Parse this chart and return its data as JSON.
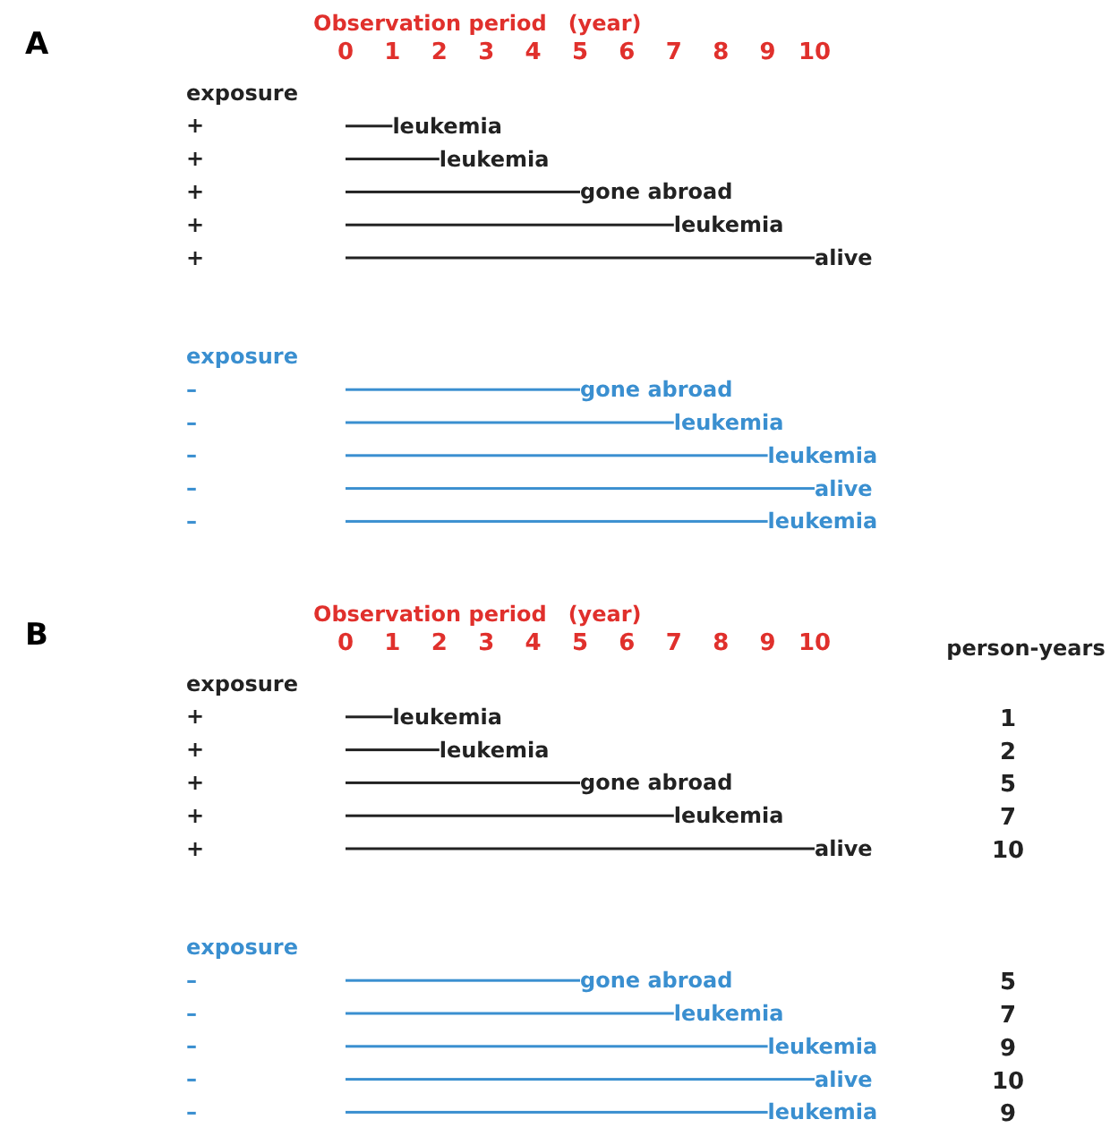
{
  "chart_data": [
    {
      "type": "bar",
      "orientation": "horizontal",
      "title": "A",
      "xlabel": "Observation period　(year)",
      "xlim": [
        0,
        10
      ],
      "xticks": [
        0,
        1,
        2,
        3,
        4,
        5,
        6,
        7,
        8,
        9,
        10
      ],
      "categories": [
        "exposure",
        "+",
        "+",
        "+",
        "+",
        "+",
        null,
        null,
        "exposure",
        "–",
        "–",
        "–",
        "–",
        "–"
      ],
      "grid": false,
      "series": [
        {
          "color": "#222222",
          "values": [
            null,
            1,
            2,
            5,
            7,
            10,
            null,
            null,
            null,
            null,
            null,
            null,
            null,
            null
          ],
          "value_labels": [
            null,
            "leukemia",
            "leukemia",
            "gone abroad",
            "leukemia",
            "alive",
            null,
            null,
            null,
            null,
            null,
            null,
            null,
            null
          ]
        },
        {
          "color": "#3a8fd0",
          "values": [
            null,
            null,
            null,
            null,
            null,
            null,
            null,
            null,
            null,
            5,
            7,
            9,
            10,
            9
          ],
          "value_labels": [
            null,
            null,
            null,
            null,
            null,
            null,
            null,
            null,
            null,
            "gone abroad",
            "leukemia",
            "leukemia",
            "alive",
            "leukemia"
          ]
        }
      ]
    },
    {
      "type": "bar",
      "orientation": "horizontal",
      "title": "B",
      "xlabel": "Observation period　(year)",
      "xlim": [
        0,
        10
      ],
      "xticks": [
        0,
        1,
        2,
        3,
        4,
        5,
        6,
        7,
        8,
        9,
        10
      ],
      "categories": [
        "exposure",
        "+",
        "+",
        "+",
        "+",
        "+",
        null,
        null,
        "exposure",
        "–",
        "–",
        "–",
        "–",
        "–"
      ],
      "grid": false,
      "annotations": [
        "person-years",
        "1",
        "2",
        "5",
        "7",
        "10",
        "5",
        "7",
        "9",
        "10",
        "9"
      ],
      "series": [
        {
          "color": "#222222",
          "values": [
            null,
            1,
            2,
            5,
            7,
            10,
            null,
            null,
            null,
            null,
            null,
            null,
            null,
            null
          ],
          "value_labels": [
            null,
            "leukemia",
            "leukemia",
            "gone abroad",
            "leukemia",
            "alive",
            null,
            null,
            null,
            null,
            null,
            null,
            null,
            null
          ]
        },
        {
          "color": "#3a8fd0",
          "values": [
            null,
            null,
            null,
            null,
            null,
            null,
            null,
            null,
            null,
            5,
            7,
            9,
            10,
            9
          ],
          "value_labels": [
            null,
            null,
            null,
            null,
            null,
            null,
            null,
            null,
            null,
            "gone abroad",
            "leukemia",
            "leukemia",
            "alive",
            "leukemia"
          ]
        }
      ]
    }
  ]
}
